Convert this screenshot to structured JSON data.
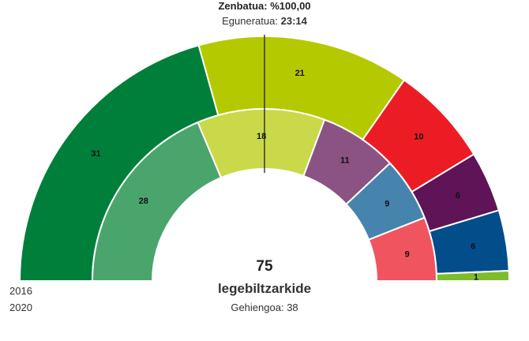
{
  "header": {
    "counted_label": "Zenbatua:",
    "counted_value": "%100,00",
    "updated_label": "Eguneratua:",
    "updated_value": "23:14"
  },
  "legend": {
    "outer_year": "2016",
    "inner_year": "2020"
  },
  "center": {
    "total": "75",
    "unit": "legebiltzarkide",
    "majority_label": "Gehiengoa:",
    "majority_value": "38"
  },
  "chart_data": {
    "type": "parliament-hemicycle",
    "total_seats": 75,
    "majority": 38,
    "rings": [
      {
        "year": "2016",
        "seats": [
          {
            "value": 31,
            "color": "#007f3a"
          },
          {
            "value": 21,
            "color": "#b5c900"
          },
          {
            "value": 10,
            "color": "#ec1c24"
          },
          {
            "value": 6,
            "color": "#5e1456"
          },
          {
            "value": 6,
            "color": "#034d8a"
          },
          {
            "value": 1,
            "color": "#7ebc2e"
          }
        ]
      },
      {
        "year": "2020",
        "seats": [
          {
            "value": 28,
            "color": "#4aa56d"
          },
          {
            "value": 18,
            "color": "#c9d94a"
          },
          {
            "value": 11,
            "color": "#8b5284"
          },
          {
            "value": 9,
            "color": "#4784ad"
          },
          {
            "value": 9,
            "color": "#f0555f"
          }
        ]
      }
    ]
  }
}
